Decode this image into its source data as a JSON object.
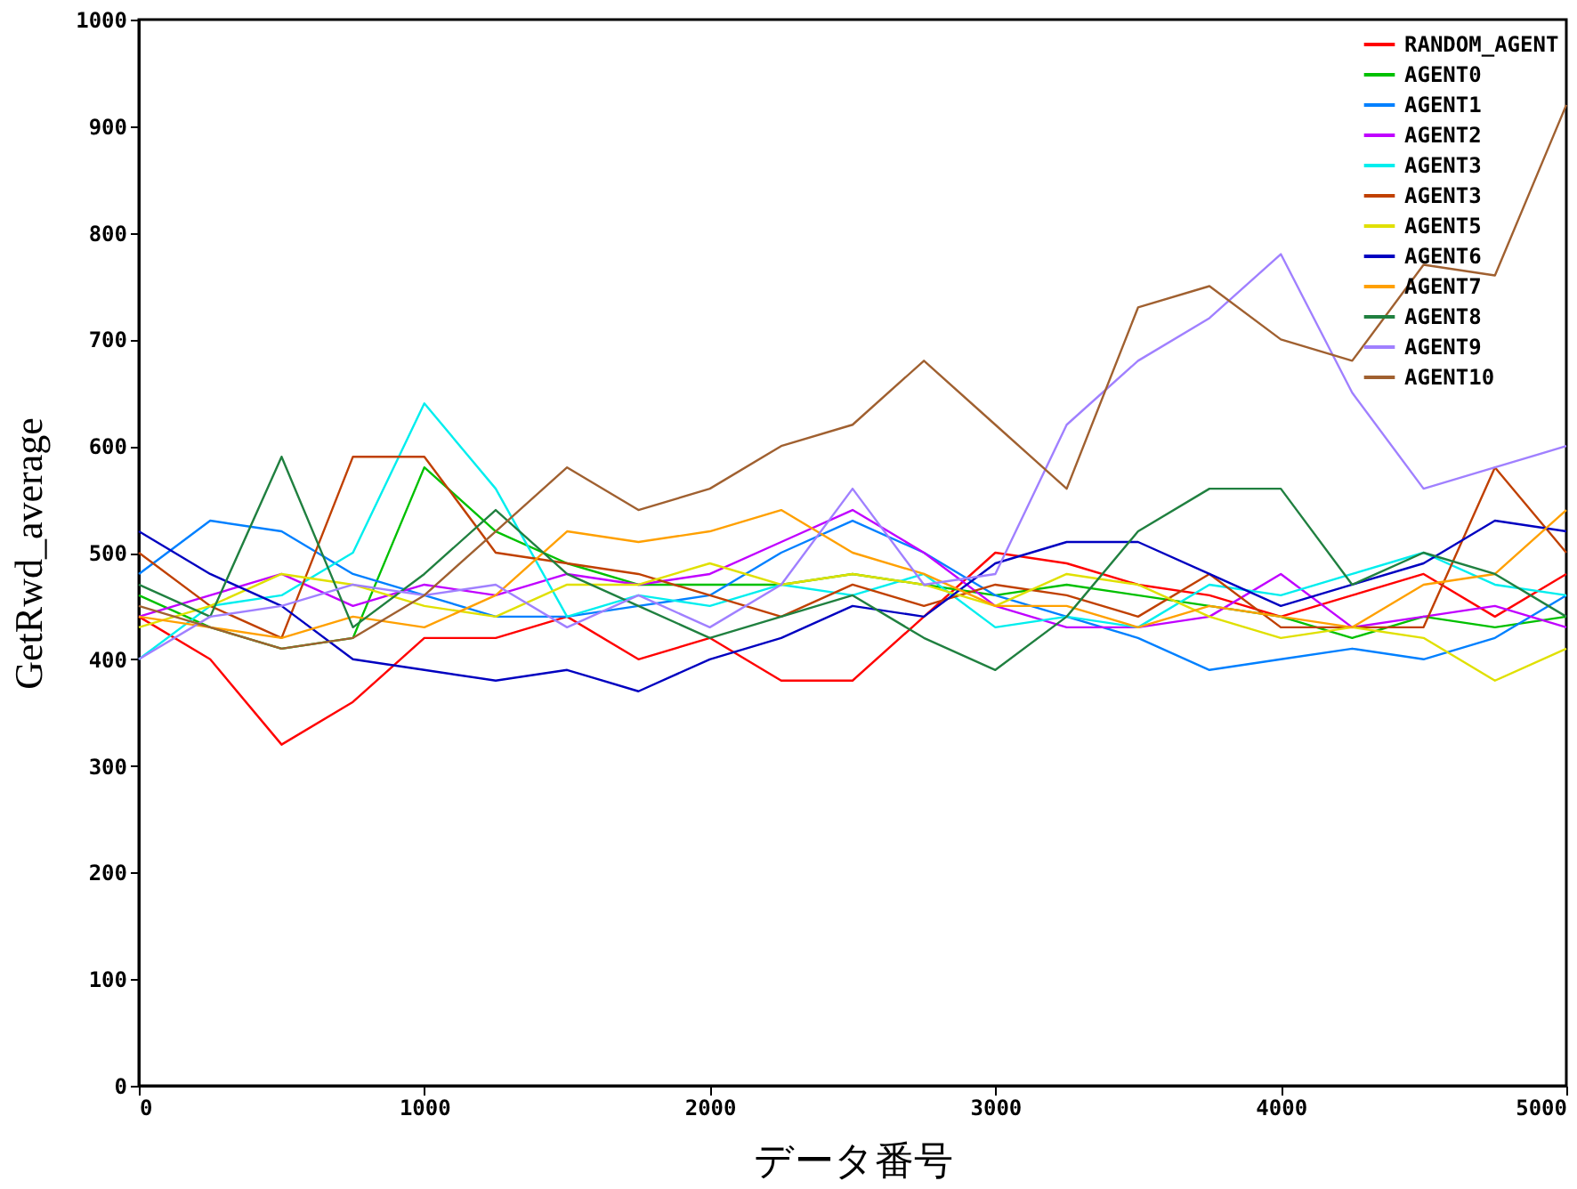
{
  "chart_data": {
    "type": "line",
    "xlabel": "データ番号",
    "ylabel": "GetRwd_average",
    "x": [
      0,
      250,
      500,
      750,
      1000,
      1250,
      1500,
      1750,
      2000,
      2250,
      2500,
      2750,
      3000,
      3250,
      3500,
      3750,
      4000,
      4250,
      4500,
      4750,
      5000
    ],
    "xlim": [
      0,
      5000
    ],
    "xticks": [
      0,
      1000,
      2000,
      3000,
      4000,
      5000
    ],
    "ylim": [
      0,
      1000
    ],
    "yticks": [
      0,
      100,
      200,
      300,
      400,
      500,
      600,
      700,
      800,
      900,
      1000
    ],
    "grid": false,
    "legend": "top right",
    "marker": "none",
    "line_style": "solid",
    "series": [
      {
        "name": "RANDOM_AGENT",
        "color": "#ff0000",
        "values": [
          440,
          400,
          320,
          360,
          420,
          420,
          440,
          400,
          420,
          380,
          380,
          440,
          500,
          490,
          470,
          460,
          440,
          460,
          480,
          440,
          480
        ]
      },
      {
        "name": "AGENT0",
        "color": "#00c000",
        "values": [
          460,
          430,
          410,
          420,
          580,
          520,
          490,
          470,
          470,
          470,
          480,
          470,
          460,
          470,
          460,
          450,
          440,
          420,
          440,
          430,
          440
        ]
      },
      {
        "name": "AGENT1",
        "color": "#0080ff",
        "values": [
          480,
          530,
          520,
          480,
          460,
          440,
          440,
          450,
          460,
          500,
          530,
          500,
          460,
          440,
          420,
          390,
          400,
          410,
          400,
          420,
          460
        ]
      },
      {
        "name": "AGENT2",
        "color": "#c000ff",
        "values": [
          440,
          460,
          480,
          450,
          470,
          460,
          480,
          470,
          480,
          510,
          540,
          500,
          450,
          430,
          430,
          440,
          480,
          430,
          440,
          450,
          430
        ]
      },
      {
        "name": "AGENT3",
        "color": "#00eeee",
        "values": [
          400,
          450,
          460,
          500,
          640,
          560,
          440,
          460,
          450,
          470,
          460,
          480,
          430,
          440,
          430,
          470,
          460,
          480,
          500,
          470,
          460
        ]
      },
      {
        "name": "AGENT3",
        "color": "#c04000",
        "values": [
          500,
          450,
          420,
          590,
          590,
          500,
          490,
          480,
          460,
          440,
          470,
          450,
          470,
          460,
          440,
          480,
          430,
          430,
          430,
          580,
          500
        ]
      },
      {
        "name": "AGENT5",
        "color": "#e0e000",
        "values": [
          430,
          450,
          480,
          470,
          450,
          440,
          470,
          470,
          490,
          470,
          480,
          470,
          450,
          480,
          470,
          440,
          420,
          430,
          420,
          380,
          410
        ]
      },
      {
        "name": "AGENT6",
        "color": "#0000c0",
        "values": [
          520,
          480,
          450,
          400,
          390,
          380,
          390,
          370,
          400,
          420,
          450,
          440,
          490,
          510,
          510,
          480,
          450,
          470,
          490,
          530,
          520
        ]
      },
      {
        "name": "AGENT7",
        "color": "#ffa000",
        "values": [
          440,
          430,
          420,
          440,
          430,
          460,
          520,
          510,
          520,
          540,
          500,
          480,
          450,
          450,
          430,
          450,
          440,
          430,
          470,
          480,
          540
        ]
      },
      {
        "name": "AGENT8",
        "color": "#208040",
        "values": [
          470,
          440,
          590,
          430,
          480,
          540,
          480,
          450,
          420,
          440,
          460,
          420,
          390,
          440,
          520,
          560,
          560,
          470,
          500,
          480,
          440
        ]
      },
      {
        "name": "AGENT9",
        "color": "#a080ff",
        "values": [
          400,
          440,
          450,
          470,
          460,
          470,
          430,
          460,
          430,
          470,
          560,
          470,
          480,
          620,
          680,
          720,
          780,
          650,
          560,
          580,
          600
        ]
      },
      {
        "name": "AGENT10",
        "color": "#a06030",
        "values": [
          450,
          430,
          410,
          420,
          460,
          520,
          580,
          540,
          560,
          600,
          620,
          680,
          620,
          560,
          730,
          750,
          700,
          680,
          770,
          760,
          920
        ]
      }
    ]
  }
}
